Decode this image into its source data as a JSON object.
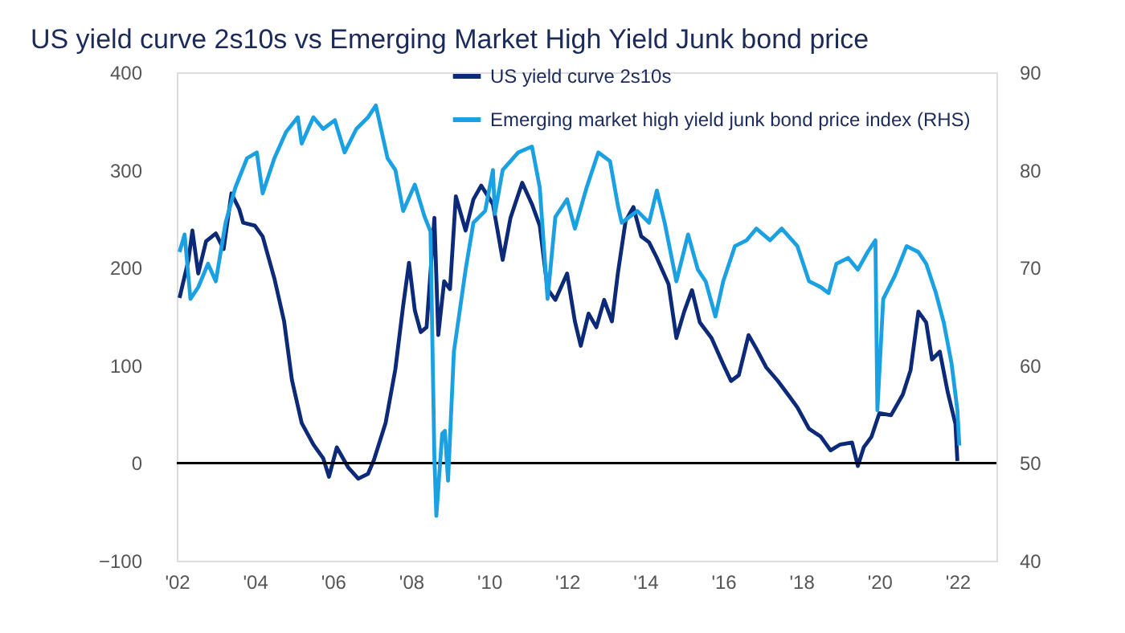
{
  "chart_data": {
    "type": "line",
    "title": "US yield curve 2s10s vs Emerging Market High Yield Junk bond price",
    "xlim": [
      2002,
      2023
    ],
    "xticks": [
      {
        "value": 2002,
        "label": "'02"
      },
      {
        "value": 2004,
        "label": "'04"
      },
      {
        "value": 2006,
        "label": "'06"
      },
      {
        "value": 2008,
        "label": "'08"
      },
      {
        "value": 2010,
        "label": "'10"
      },
      {
        "value": 2012,
        "label": "'12"
      },
      {
        "value": 2014,
        "label": "'14"
      },
      {
        "value": 2016,
        "label": "'16"
      },
      {
        "value": 2018,
        "label": "'18"
      },
      {
        "value": 2020,
        "label": "'20"
      },
      {
        "value": 2022,
        "label": "'22"
      }
    ],
    "ylim": [
      -100,
      400
    ],
    "yticks": [
      -100,
      0,
      100,
      200,
      300,
      400
    ],
    "y2lim": [
      40,
      90
    ],
    "y2ticks": [
      40,
      50,
      60,
      70,
      80,
      90
    ],
    "grid": false,
    "legend": "top",
    "line_style": "solid",
    "marker": "none",
    "ref_lines": [
      {
        "axis": "y",
        "value": 0,
        "color": "#000000"
      }
    ],
    "series": [
      {
        "name": "US yield curve 2s10s",
        "color": "#0c2a78",
        "x": [
          2002.07,
          2002.3,
          2002.4,
          2002.55,
          2002.75,
          2003.0,
          2003.2,
          2003.4,
          2003.6,
          2003.7,
          2004.0,
          2004.2,
          2004.5,
          2004.75,
          2004.95,
          2005.2,
          2005.5,
          2005.75,
          2005.9,
          2006.1,
          2006.4,
          2006.65,
          2006.9,
          2007.05,
          2007.35,
          2007.6,
          2007.8,
          2007.95,
          2008.1,
          2008.25,
          2008.4,
          2008.6,
          2008.7,
          2008.85,
          2009.0,
          2009.15,
          2009.4,
          2009.6,
          2009.8,
          2010.1,
          2010.35,
          2010.55,
          2010.85,
          2011.1,
          2011.3,
          2011.5,
          2011.7,
          2012.0,
          2012.2,
          2012.35,
          2012.55,
          2012.75,
          2012.95,
          2013.15,
          2013.3,
          2013.5,
          2013.7,
          2013.9,
          2014.1,
          2014.3,
          2014.6,
          2014.8,
          2015.0,
          2015.2,
          2015.4,
          2015.7,
          2016.0,
          2016.2,
          2016.4,
          2016.65,
          2016.85,
          2017.1,
          2017.4,
          2017.7,
          2017.9,
          2018.2,
          2018.5,
          2018.75,
          2019.0,
          2019.3,
          2019.45,
          2019.6,
          2019.8,
          2020.0,
          2020.3,
          2020.6,
          2020.8,
          2021.0,
          2021.2,
          2021.35,
          2021.55,
          2021.75,
          2021.95,
          2022.0
        ],
        "values": [
          169,
          208,
          238,
          194,
          227,
          235,
          219,
          276,
          260,
          246,
          243,
          232,
          189,
          145,
          85,
          41,
          19,
          5,
          -14,
          16,
          -5,
          -16,
          -11,
          3,
          41,
          96,
          161,
          205,
          156,
          134,
          139,
          251,
          131,
          186,
          178,
          273,
          238,
          270,
          284,
          265,
          208,
          251,
          287,
          265,
          243,
          178,
          167,
          194,
          145,
          120,
          153,
          139,
          167,
          145,
          194,
          248,
          262,
          232,
          226,
          210,
          183,
          128,
          155,
          177,
          144,
          128,
          101,
          84,
          90,
          131,
          117,
          98,
          84,
          68,
          57,
          35,
          27,
          13,
          19,
          21,
          -3,
          16,
          27,
          51,
          49,
          70,
          95,
          155,
          144,
          106,
          114,
          73,
          40,
          2
        ]
      },
      {
        "name": "Emerging market high yield junk bond price index (RHS)",
        "color": "#1ba1e2",
        "axis": "y2",
        "x": [
          2002.07,
          2002.2,
          2002.35,
          2002.55,
          2002.8,
          2003.0,
          2003.25,
          2003.5,
          2003.8,
          2004.05,
          2004.2,
          2004.5,
          2004.8,
          2005.1,
          2005.2,
          2005.5,
          2005.75,
          2006.05,
          2006.3,
          2006.6,
          2006.9,
          2007.1,
          2007.4,
          2007.6,
          2007.8,
          2008.1,
          2008.35,
          2008.5,
          2008.6,
          2008.65,
          2008.8,
          2008.87,
          2008.95,
          2009.1,
          2009.4,
          2009.6,
          2009.9,
          2010.1,
          2010.15,
          2010.35,
          2010.75,
          2011.1,
          2011.3,
          2011.5,
          2011.7,
          2012.0,
          2012.2,
          2012.5,
          2012.8,
          2013.1,
          2013.3,
          2013.4,
          2013.8,
          2014.1,
          2014.3,
          2014.5,
          2014.8,
          2015.1,
          2015.35,
          2015.55,
          2015.8,
          2016.0,
          2016.3,
          2016.6,
          2016.85,
          2017.2,
          2017.5,
          2017.9,
          2018.2,
          2018.5,
          2018.7,
          2018.9,
          2019.2,
          2019.45,
          2019.7,
          2019.9,
          2019.95,
          2020.1,
          2020.4,
          2020.7,
          2021.0,
          2021.2,
          2021.45,
          2021.65,
          2021.85,
          2022.0,
          2022.05
        ],
        "values": [
          71.6,
          73.4,
          66.8,
          68.0,
          70.4,
          68.6,
          74.6,
          78.2,
          81.2,
          81.8,
          77.6,
          81.2,
          83.9,
          85.4,
          82.7,
          85.4,
          84.2,
          85.1,
          81.8,
          84.2,
          85.4,
          86.6,
          81.2,
          80.0,
          75.8,
          78.5,
          75.2,
          73.7,
          50.6,
          44.6,
          53.0,
          53.3,
          48.2,
          61.4,
          69.8,
          74.6,
          75.8,
          80.0,
          75.5,
          80.0,
          81.8,
          82.4,
          78.2,
          66.8,
          75.2,
          77.0,
          74.0,
          78.2,
          81.8,
          80.9,
          76.4,
          74.6,
          75.8,
          74.6,
          77.9,
          74.6,
          68.6,
          73.4,
          69.8,
          68.6,
          65.0,
          68.6,
          72.2,
          72.8,
          74.0,
          72.8,
          74.0,
          72.2,
          68.6,
          68.0,
          67.4,
          70.4,
          71.0,
          69.8,
          71.6,
          72.8,
          55.4,
          66.8,
          69.2,
          72.2,
          71.6,
          70.4,
          67.4,
          64.4,
          60.2,
          55.4,
          51.8
        ]
      }
    ]
  }
}
